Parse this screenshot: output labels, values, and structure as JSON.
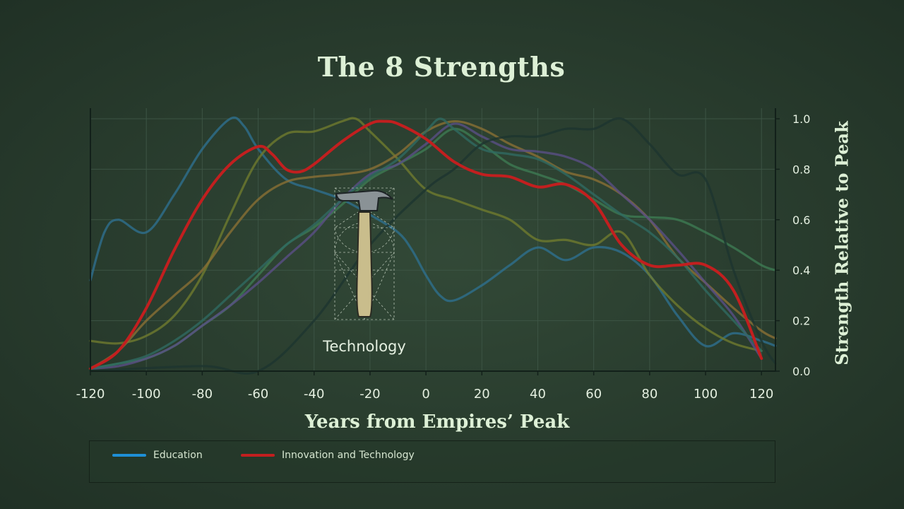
{
  "title": "The 8 Strengths",
  "icon": {
    "name": "hammer-icon",
    "label": "Technology"
  },
  "legend": [
    {
      "label": "Education",
      "color": "#1e8fd6"
    },
    {
      "label": "Innovation and Technology",
      "color": "#c21f1f"
    }
  ],
  "chart_data": {
    "type": "line",
    "title": "The 8 Strengths",
    "xlabel": "Years from Empires’ Peak",
    "ylabel": "Strength Relative to Peak",
    "xlim": [
      -120,
      125
    ],
    "ylim": [
      0,
      1.0
    ],
    "xticks": [
      -120,
      -100,
      -80,
      -60,
      -40,
      -20,
      0,
      20,
      40,
      60,
      80,
      100,
      120
    ],
    "yticks": [
      0.0,
      0.2,
      0.4,
      0.6,
      0.8,
      1.0
    ],
    "ytick_labels": [
      "0.0",
      "0.2",
      "0.4",
      "0.6",
      "0.8",
      "1.0"
    ],
    "grid": true,
    "series": [
      {
        "name": "Education",
        "color": "#2e6f8e",
        "highlight": false,
        "x": [
          -120,
          -115,
          -110,
          -100,
          -90,
          -80,
          -70,
          -65,
          -60,
          -50,
          -40,
          -30,
          -20,
          -10,
          -5,
          0,
          5,
          10,
          20,
          30,
          40,
          50,
          60,
          70,
          80,
          90,
          100,
          110,
          120,
          125
        ],
        "y": [
          0.36,
          0.55,
          0.6,
          0.55,
          0.7,
          0.88,
          1.0,
          0.97,
          0.88,
          0.76,
          0.72,
          0.68,
          0.62,
          0.55,
          0.48,
          0.38,
          0.3,
          0.28,
          0.34,
          0.42,
          0.49,
          0.44,
          0.49,
          0.47,
          0.38,
          0.22,
          0.1,
          0.15,
          0.12,
          0.1
        ]
      },
      {
        "name": "Innovation and Technology",
        "color": "#c21f1f",
        "highlight": true,
        "x": [
          -120,
          -110,
          -100,
          -90,
          -80,
          -70,
          -60,
          -55,
          -50,
          -45,
          -40,
          -30,
          -20,
          -15,
          -10,
          0,
          10,
          20,
          30,
          40,
          50,
          60,
          70,
          80,
          90,
          100,
          110,
          120
        ],
        "y": [
          0.01,
          0.08,
          0.25,
          0.48,
          0.68,
          0.82,
          0.89,
          0.86,
          0.8,
          0.79,
          0.82,
          0.91,
          0.98,
          0.99,
          0.98,
          0.92,
          0.83,
          0.78,
          0.77,
          0.73,
          0.74,
          0.67,
          0.5,
          0.42,
          0.42,
          0.42,
          0.32,
          0.05
        ]
      },
      {
        "name": "",
        "color": "#6f7a2e",
        "highlight": false,
        "x": [
          -120,
          -110,
          -100,
          -90,
          -80,
          -70,
          -60,
          -50,
          -40,
          -30,
          -25,
          -20,
          -10,
          0,
          10,
          20,
          30,
          40,
          50,
          60,
          70,
          80,
          90,
          100,
          110,
          120
        ],
        "y": [
          0.12,
          0.11,
          0.14,
          0.22,
          0.38,
          0.62,
          0.84,
          0.94,
          0.95,
          0.99,
          1.0,
          0.95,
          0.84,
          0.72,
          0.68,
          0.64,
          0.6,
          0.52,
          0.52,
          0.5,
          0.55,
          0.38,
          0.26,
          0.17,
          0.11,
          0.08
        ]
      },
      {
        "name": "",
        "color": "#8a6f35",
        "highlight": false,
        "x": [
          -120,
          -110,
          -100,
          -90,
          -80,
          -70,
          -60,
          -50,
          -40,
          -30,
          -20,
          -10,
          0,
          10,
          20,
          30,
          40,
          50,
          60,
          70,
          80,
          90,
          100,
          110,
          120,
          125
        ],
        "y": [
          0.01,
          0.08,
          0.2,
          0.3,
          0.4,
          0.55,
          0.68,
          0.75,
          0.77,
          0.78,
          0.8,
          0.86,
          0.95,
          0.99,
          0.96,
          0.9,
          0.85,
          0.79,
          0.76,
          0.7,
          0.6,
          0.45,
          0.35,
          0.25,
          0.16,
          0.13
        ]
      },
      {
        "name": "",
        "color": "#3d7a52",
        "highlight": false,
        "x": [
          -120,
          -110,
          -100,
          -90,
          -80,
          -70,
          -60,
          -50,
          -40,
          -30,
          -20,
          -10,
          0,
          10,
          20,
          30,
          40,
          50,
          60,
          70,
          80,
          90,
          100,
          110,
          120,
          125
        ],
        "y": [
          0.01,
          0.03,
          0.05,
          0.1,
          0.18,
          0.26,
          0.38,
          0.5,
          0.57,
          0.66,
          0.76,
          0.82,
          0.88,
          0.96,
          0.9,
          0.82,
          0.78,
          0.74,
          0.68,
          0.62,
          0.61,
          0.6,
          0.55,
          0.49,
          0.42,
          0.4
        ]
      },
      {
        "name": "",
        "color": "#5a4f86",
        "highlight": false,
        "x": [
          -120,
          -110,
          -100,
          -90,
          -80,
          -70,
          -60,
          -50,
          -40,
          -30,
          -20,
          -10,
          0,
          10,
          20,
          30,
          40,
          50,
          60,
          70,
          80,
          90,
          100,
          110,
          120
        ],
        "y": [
          0.01,
          0.02,
          0.05,
          0.1,
          0.18,
          0.26,
          0.35,
          0.45,
          0.55,
          0.68,
          0.78,
          0.82,
          0.9,
          0.98,
          0.93,
          0.88,
          0.87,
          0.85,
          0.8,
          0.7,
          0.6,
          0.48,
          0.35,
          0.22,
          0.05
        ]
      },
      {
        "name": "",
        "color": "#2f6a62",
        "highlight": false,
        "x": [
          -120,
          -110,
          -100,
          -90,
          -80,
          -70,
          -60,
          -50,
          -40,
          -30,
          -20,
          -10,
          0,
          5,
          10,
          20,
          30,
          40,
          50,
          60,
          70,
          80,
          90,
          100,
          110,
          120
        ],
        "y": [
          0.01,
          0.03,
          0.06,
          0.12,
          0.2,
          0.3,
          0.4,
          0.5,
          0.58,
          0.68,
          0.77,
          0.84,
          0.95,
          1.0,
          0.96,
          0.88,
          0.86,
          0.84,
          0.78,
          0.7,
          0.62,
          0.55,
          0.45,
          0.32,
          0.2,
          0.08
        ]
      },
      {
        "name": "",
        "color": "#1d3430",
        "highlight": false,
        "x": [
          -120,
          -80,
          -60,
          -40,
          -20,
          0,
          10,
          20,
          30,
          40,
          50,
          60,
          70,
          80,
          90,
          100,
          110,
          120,
          125
        ],
        "y": [
          0.0,
          0.02,
          0.0,
          0.2,
          0.5,
          0.72,
          0.8,
          0.9,
          0.93,
          0.93,
          0.96,
          0.96,
          1.0,
          0.9,
          0.78,
          0.76,
          0.4,
          0.12,
          0.03
        ]
      }
    ]
  }
}
